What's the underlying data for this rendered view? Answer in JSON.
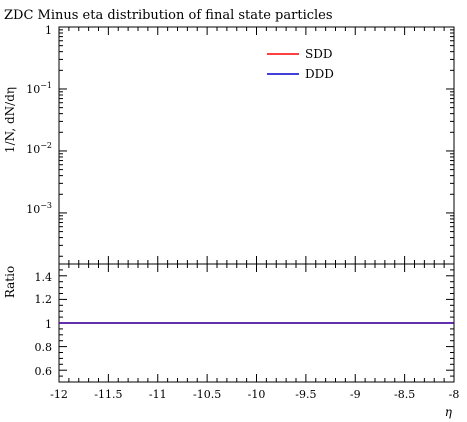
{
  "chart_data": [
    {
      "type": "line",
      "title": "ZDC Minus eta distribution of final state particles",
      "ylabel": "1/N, dN/dη",
      "ylog": true,
      "ylim": [
        0.00015,
        1
      ],
      "xlim": [
        -12,
        -8
      ],
      "ytick_labels": [
        "1",
        "10^-1",
        "10^-2",
        "10^-3"
      ],
      "legend": {
        "position": "top-right",
        "entries": [
          {
            "label": "SDD",
            "color": "#ff0000"
          },
          {
            "label": "DDD",
            "color": "#0000cc"
          }
        ]
      },
      "series": [
        {
          "name": "SDD",
          "color": "#ff0000",
          "x": [],
          "y": []
        },
        {
          "name": "DDD",
          "color": "#0000cc",
          "x": [],
          "y": []
        }
      ]
    },
    {
      "type": "line",
      "ylabel": "Ratio",
      "xlabel": "η",
      "xlim": [
        -12,
        -8
      ],
      "ylim": [
        0.5,
        1.5
      ],
      "ytick_labels": [
        "1.4",
        "1.2",
        "1",
        "0.8",
        "0.6"
      ],
      "xtick_labels": [
        "-12",
        "-11.5",
        "-11",
        "-10.5",
        "-10",
        "-9.5",
        "-9",
        "-8.5",
        "-8"
      ],
      "series": [
        {
          "name": "SDD",
          "color": "#ff0000",
          "x": [
            -12,
            -8
          ],
          "y": [
            1,
            1
          ]
        },
        {
          "name": "DDD",
          "color": "#0000cc",
          "x": [
            -12,
            -8
          ],
          "y": [
            1,
            1
          ]
        }
      ]
    }
  ]
}
